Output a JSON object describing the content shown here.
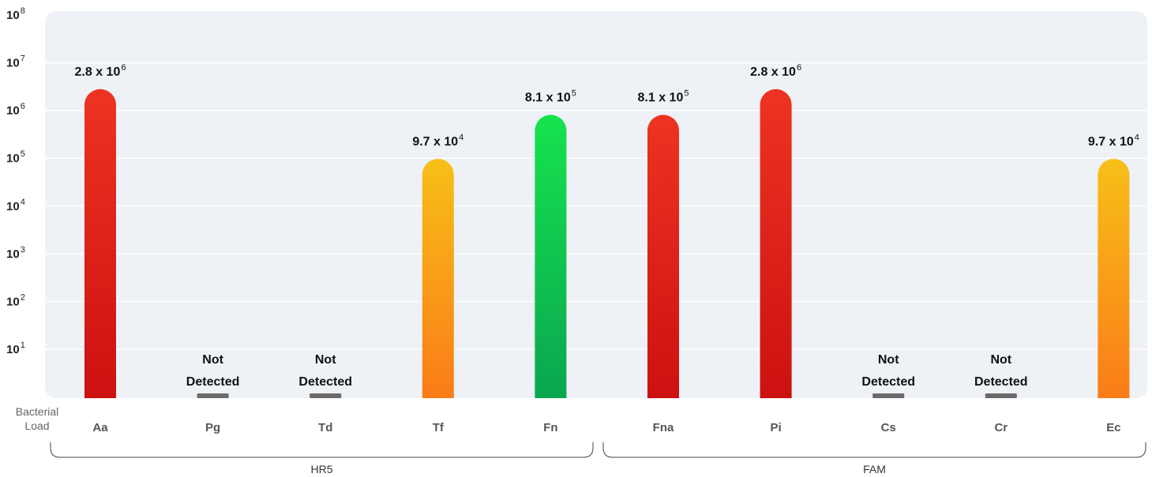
{
  "chart_data": {
    "type": "bar",
    "yscale": "log",
    "ylim": [
      1,
      100000000
    ],
    "grid": true,
    "ylabel": "Bacterial Load",
    "ytick_labels": [
      {
        "base": "10",
        "exp": "1"
      },
      {
        "base": "10",
        "exp": "2"
      },
      {
        "base": "10",
        "exp": "3"
      },
      {
        "base": "10",
        "exp": "4"
      },
      {
        "base": "10",
        "exp": "5"
      },
      {
        "base": "10",
        "exp": "6"
      },
      {
        "base": "10",
        "exp": "7"
      },
      {
        "base": "10",
        "exp": "8"
      }
    ],
    "categories": [
      "Aa",
      "Pg",
      "Td",
      "Tf",
      "Fn",
      "Fna",
      "Pi",
      "Cs",
      "Cr",
      "Ec"
    ],
    "values": [
      2800000,
      null,
      null,
      97000,
      810000,
      810000,
      2800000,
      null,
      null,
      97000
    ],
    "value_labels": [
      {
        "mantissa": "2.8 x 10",
        "exp": "6"
      },
      {
        "line1": "Not",
        "line2": "Detected"
      },
      {
        "line1": "Not",
        "line2": "Detected"
      },
      {
        "mantissa": "9.7 x 10",
        "exp": "4"
      },
      {
        "mantissa": "8.1 x 10",
        "exp": "5"
      },
      {
        "mantissa": "8.1 x 10",
        "exp": "5"
      },
      {
        "mantissa": "2.8 x 10",
        "exp": "6"
      },
      {
        "line1": "Not",
        "line2": "Detected"
      },
      {
        "line1": "Not",
        "line2": "Detected"
      },
      {
        "mantissa": "9.7 x 10",
        "exp": "4"
      }
    ],
    "bar_colors": [
      [
        "#ee3322",
        "#cc1111"
      ],
      null,
      null,
      [
        "#f8bf18",
        "#fa7c18"
      ],
      [
        "#16e34e",
        "#0aa650"
      ],
      [
        "#ee3322",
        "#cc1111"
      ],
      [
        "#ee3322",
        "#cc1111"
      ],
      null,
      null,
      [
        "#f8bf18",
        "#fa7c18"
      ]
    ],
    "groups": [
      {
        "label": "HR5",
        "categories": [
          "Aa",
          "Pg",
          "Td",
          "Tf",
          "Fn"
        ]
      },
      {
        "label": "FAM",
        "categories": [
          "Fna",
          "Pi",
          "Cs",
          "Cr",
          "Ec"
        ]
      }
    ],
    "colors": {
      "plot_bg": "#eef1f5",
      "gridline": "#ffffff",
      "not_detected_mark": "#6b6b6b",
      "bracket": "#6b6b6b"
    }
  }
}
